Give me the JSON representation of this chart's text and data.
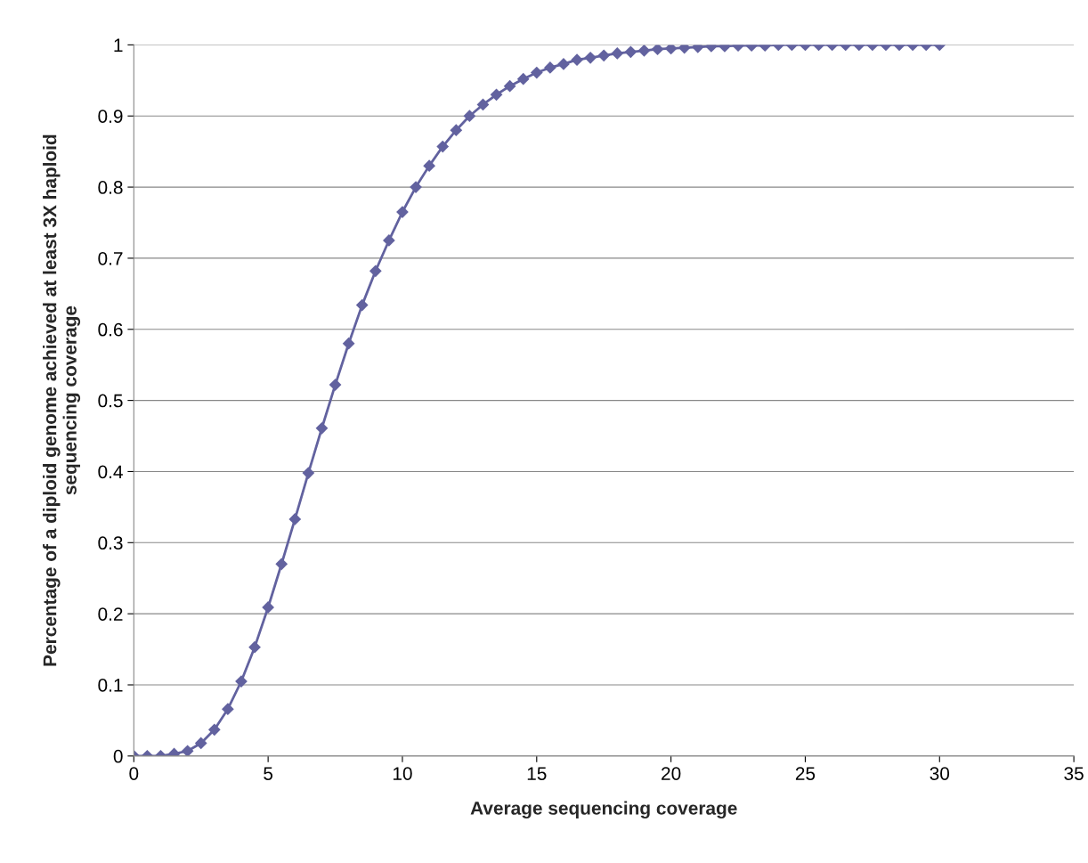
{
  "chart_data": {
    "type": "line",
    "xlabel": "Average sequencing coverage",
    "ylabel": "Percentage of a diploid genome achieved at least 3X haploid\nsequencing coverage",
    "x": [
      0,
      0.5,
      1,
      1.5,
      2,
      2.5,
      3,
      3.5,
      4,
      4.5,
      5,
      5.5,
      6,
      6.5,
      7,
      7.5,
      8,
      8.5,
      9,
      9.5,
      10,
      10.5,
      11,
      11.5,
      12,
      12.5,
      13,
      13.5,
      14,
      14.5,
      15,
      15.5,
      16,
      16.5,
      17,
      17.5,
      18,
      18.5,
      19,
      19.5,
      20,
      20.5,
      21,
      21.5,
      22,
      22.5,
      23,
      23.5,
      24,
      24.5,
      25,
      25.5,
      26,
      26.5,
      27,
      27.5,
      28,
      28.5,
      29,
      29.5,
      30
    ],
    "series": [
      {
        "color": "#62629f",
        "values": [
          0,
          0,
          0,
          0.003,
          0.007,
          0.018,
          0.037,
          0.066,
          0.105,
          0.153,
          0.209,
          0.27,
          0.333,
          0.398,
          0.461,
          0.522,
          0.58,
          0.634,
          0.682,
          0.725,
          0.765,
          0.8,
          0.83,
          0.857,
          0.88,
          0.9,
          0.916,
          0.93,
          0.942,
          0.952,
          0.961,
          0.968,
          0.973,
          0.979,
          0.982,
          0.985,
          0.988,
          0.99,
          0.992,
          0.994,
          0.995,
          0.996,
          0.997,
          0.998,
          0.998,
          0.999,
          0.999,
          0.999,
          1,
          1,
          1,
          1,
          1,
          1,
          1,
          1,
          1,
          1,
          1,
          1,
          1
        ]
      }
    ],
    "xlim": [
      0,
      35
    ],
    "xticks": [
      0,
      5,
      10,
      15,
      20,
      25,
      30,
      35
    ],
    "ylim": [
      0,
      1
    ],
    "yticks": [
      0,
      0.1,
      0.2,
      0.3,
      0.4,
      0.5,
      0.6,
      0.7,
      0.8,
      0.9,
      1
    ],
    "grid": "y",
    "marker": "diamond",
    "line_style": "solid"
  }
}
